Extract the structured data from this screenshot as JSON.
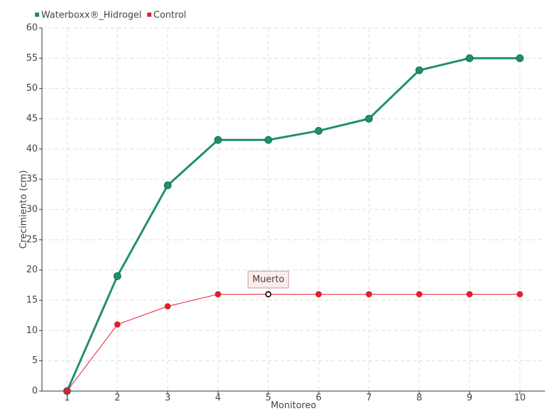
{
  "chart_data": {
    "type": "line",
    "x_label": "Monitoreo",
    "y_label": "Crecimiento (cm)",
    "categories": [
      "1",
      "2",
      "3",
      "4",
      "5",
      "6",
      "7",
      "8",
      "9",
      "10"
    ],
    "series": [
      {
        "name": "Waterboxx®_Hidrogel",
        "color": "#1f8f6e",
        "values": [
          0,
          19,
          34,
          41.5,
          41.5,
          43,
          45,
          53,
          55,
          55
        ]
      },
      {
        "name": "Control",
        "color": "#e0202e",
        "values": [
          0,
          11,
          14,
          16,
          16,
          16,
          16,
          16,
          16,
          16
        ]
      }
    ],
    "ylim": [
      0,
      60
    ],
    "yticks": [
      0,
      5,
      10,
      15,
      20,
      25,
      30,
      35,
      40,
      45,
      50,
      55,
      60
    ],
    "grid": true,
    "legend": "top-left",
    "annotation": {
      "text": "Muerto",
      "series": "Control",
      "category": "5"
    }
  }
}
